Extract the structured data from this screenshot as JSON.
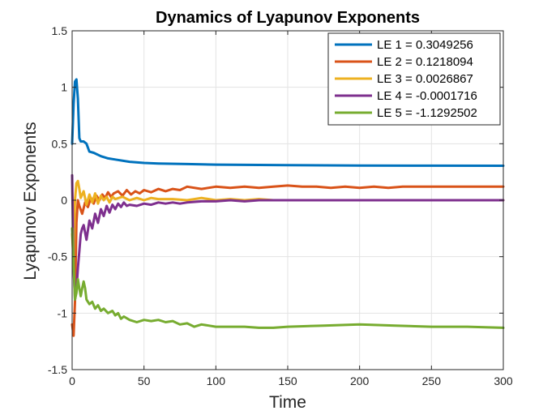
{
  "chart_data": {
    "type": "line",
    "title": "Dynamics of Lyapunov Exponents",
    "xlabel": "Time",
    "ylabel": "Lyapunov Exponents",
    "xlim": [
      0,
      300
    ],
    "ylim": [
      -1.5,
      1.5
    ],
    "xticks": [
      0,
      50,
      100,
      150,
      200,
      250,
      300
    ],
    "xtick_labels": [
      "0",
      "50",
      "100",
      "150",
      "200",
      "250",
      "300"
    ],
    "yticks": [
      -1.5,
      -1,
      -0.5,
      0,
      0.5,
      1,
      1.5
    ],
    "ytick_labels": [
      "-1.5",
      "-1",
      "-0.5",
      "0",
      "0.5",
      "1",
      "1.5"
    ],
    "grid": true,
    "legend_position": "top-right",
    "series": [
      {
        "name": "LE 1 = 0.3049256",
        "color": "#0072BD",
        "x": [
          0,
          1,
          2,
          3,
          4,
          5,
          6,
          8,
          10,
          12,
          15,
          20,
          25,
          30,
          40,
          50,
          60,
          80,
          100,
          150,
          200,
          250,
          300
        ],
        "y": [
          0.5,
          0.85,
          1.05,
          1.07,
          0.9,
          0.55,
          0.52,
          0.52,
          0.5,
          0.43,
          0.42,
          0.39,
          0.37,
          0.36,
          0.34,
          0.33,
          0.325,
          0.32,
          0.315,
          0.31,
          0.307,
          0.306,
          0.305
        ]
      },
      {
        "name": "LE 2 = 0.1218094",
        "color": "#D95319",
        "x": [
          0,
          1,
          2,
          3,
          4,
          5,
          7,
          9,
          11,
          13,
          15,
          17,
          19,
          21,
          23,
          25,
          27,
          29,
          32,
          35,
          38,
          41,
          44,
          47,
          50,
          55,
          60,
          65,
          70,
          75,
          80,
          90,
          100,
          110,
          120,
          130,
          140,
          150,
          160,
          170,
          180,
          190,
          200,
          210,
          220,
          230,
          240,
          250,
          260,
          270,
          280,
          290,
          300
        ],
        "y": [
          -1.1,
          -1.2,
          -0.9,
          -0.2,
          0.0,
          -0.05,
          -0.12,
          -0.02,
          -0.06,
          0.02,
          -0.03,
          0.04,
          0.0,
          0.05,
          0.02,
          0.07,
          0.03,
          0.06,
          0.08,
          0.04,
          0.09,
          0.05,
          0.08,
          0.06,
          0.09,
          0.07,
          0.1,
          0.08,
          0.1,
          0.09,
          0.12,
          0.1,
          0.12,
          0.11,
          0.12,
          0.11,
          0.12,
          0.13,
          0.12,
          0.12,
          0.11,
          0.12,
          0.11,
          0.12,
          0.11,
          0.12,
          0.12,
          0.12,
          0.12,
          0.12,
          0.12,
          0.12,
          0.12
        ]
      },
      {
        "name": "LE 3 = 0.0026867",
        "color": "#EDB120",
        "x": [
          0,
          1,
          2,
          3,
          4,
          5,
          6,
          8,
          10,
          12,
          14,
          16,
          18,
          20,
          22,
          24,
          26,
          28,
          30,
          35,
          40,
          45,
          50,
          55,
          60,
          70,
          80,
          90,
          100,
          110,
          120,
          130,
          140,
          150,
          175,
          200,
          225,
          250,
          275,
          300
        ],
        "y": [
          -0.3,
          -0.55,
          0.0,
          0.15,
          0.17,
          0.1,
          0.02,
          0.08,
          -0.04,
          0.05,
          -0.02,
          0.06,
          -0.03,
          0.04,
          0.0,
          0.03,
          -0.02,
          0.03,
          0.01,
          0.03,
          0.0,
          0.02,
          0.0,
          0.02,
          0.01,
          0.01,
          0.0,
          0.02,
          0.0,
          0.01,
          0.0,
          0.01,
          0.0,
          0.0,
          0.0,
          0.0,
          0.0,
          0.0,
          0.0,
          0.0
        ]
      },
      {
        "name": "LE 4 = -0.0001716",
        "color": "#7E2F8E",
        "x": [
          0,
          0.5,
          1,
          2,
          3,
          4,
          5,
          6,
          7,
          8,
          10,
          12,
          14,
          16,
          18,
          20,
          22,
          24,
          26,
          28,
          30,
          32,
          34,
          36,
          38,
          40,
          45,
          50,
          55,
          60,
          65,
          70,
          75,
          80,
          90,
          100,
          110,
          120,
          130,
          140,
          150,
          175,
          200,
          225,
          250,
          275,
          300
        ],
        "y": [
          0.22,
          -0.2,
          -0.6,
          -0.88,
          -0.8,
          -0.6,
          -0.45,
          -0.3,
          -0.25,
          -0.22,
          -0.35,
          -0.18,
          -0.25,
          -0.12,
          -0.2,
          -0.08,
          -0.14,
          -0.05,
          -0.11,
          -0.04,
          -0.08,
          -0.03,
          -0.06,
          -0.02,
          -0.05,
          -0.04,
          -0.05,
          -0.03,
          -0.04,
          -0.02,
          -0.03,
          -0.02,
          -0.03,
          -0.02,
          -0.01,
          -0.01,
          0.0,
          -0.01,
          0.0,
          0.0,
          0.0,
          0.0,
          0.0,
          0.0,
          0.0,
          0.0,
          0.0
        ]
      },
      {
        "name": "LE 5 = -1.1292502",
        "color": "#77AC30",
        "x": [
          0,
          1,
          2,
          3,
          4,
          5,
          6,
          7,
          8,
          9,
          10,
          12,
          14,
          16,
          18,
          20,
          22,
          25,
          28,
          30,
          32,
          34,
          36,
          40,
          45,
          50,
          55,
          60,
          65,
          70,
          75,
          80,
          85,
          90,
          95,
          100,
          110,
          120,
          130,
          140,
          150,
          175,
          200,
          225,
          250,
          275,
          300
        ],
        "y": [
          -0.25,
          -0.55,
          -0.88,
          -0.82,
          -0.7,
          -0.78,
          -0.85,
          -0.78,
          -0.72,
          -0.78,
          -0.88,
          -0.92,
          -0.9,
          -0.96,
          -0.93,
          -0.98,
          -0.96,
          -1.0,
          -0.98,
          -1.02,
          -1.0,
          -1.05,
          -1.03,
          -1.06,
          -1.08,
          -1.06,
          -1.07,
          -1.06,
          -1.08,
          -1.07,
          -1.1,
          -1.09,
          -1.12,
          -1.1,
          -1.11,
          -1.12,
          -1.12,
          -1.12,
          -1.13,
          -1.13,
          -1.12,
          -1.11,
          -1.1,
          -1.11,
          -1.12,
          -1.12,
          -1.13
        ]
      }
    ]
  }
}
